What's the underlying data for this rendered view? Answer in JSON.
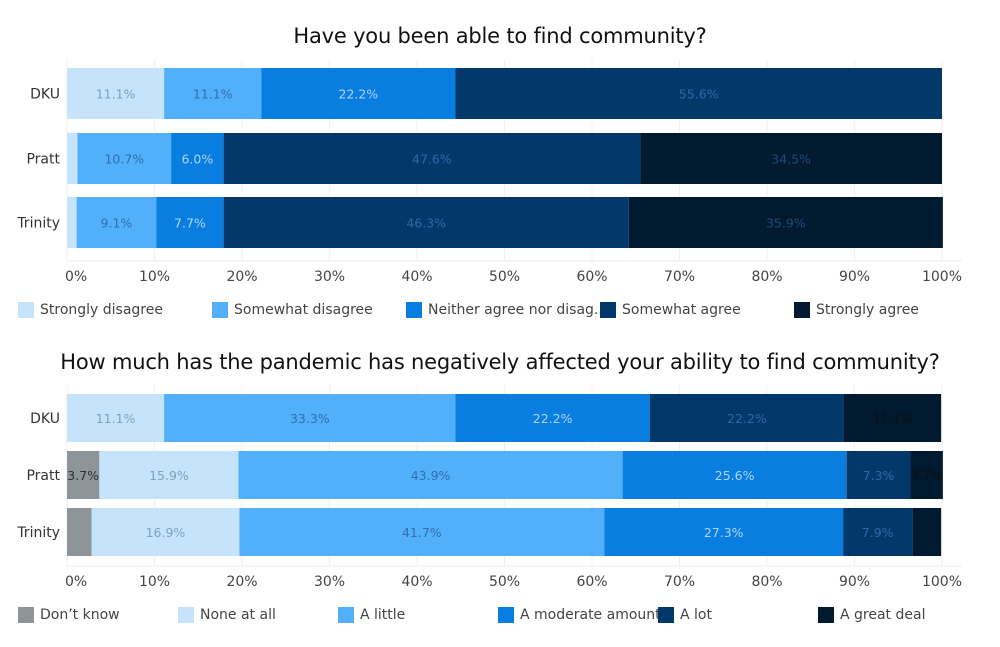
{
  "chart_data": [
    {
      "type": "bar",
      "orientation": "horizontal",
      "stacked": true,
      "title": "Have you been able to find community?",
      "xlabel": "",
      "ylabel": "",
      "xlim": [
        0,
        100
      ],
      "x_ticks": [
        "0%",
        "10%",
        "20%",
        "30%",
        "40%",
        "50%",
        "60%",
        "70%",
        "80%",
        "90%",
        "100%"
      ],
      "grid": true,
      "legend_position": "bottom",
      "categories": [
        "DKU",
        "Pratt",
        "Trinity"
      ],
      "series": [
        {
          "name": "Strongly disagree",
          "legend_label": "Strongly disagree",
          "color": "#c5e4fc",
          "label_color": "#7f9fbd",
          "values": [
            11.1,
            1.2,
            1.1
          ],
          "labels": [
            "11.1%",
            "",
            ""
          ]
        },
        {
          "name": "Somewhat disagree",
          "legend_label": "Somewhat disagree",
          "color": "#52b0fb",
          "label_color": "#2f6fae",
          "values": [
            11.1,
            10.7,
            9.1
          ],
          "labels": [
            "11.1%",
            "10.7%",
            "9.1%"
          ]
        },
        {
          "name": "Neither agree nor disagree",
          "legend_label": "Neither agree nor disag..",
          "color": "#0a7de0",
          "label_color": "#a9d6ff",
          "values": [
            22.2,
            6.0,
            7.7
          ],
          "labels": [
            "22.2%",
            "6.0%",
            "7.7%"
          ]
        },
        {
          "name": "Somewhat agree",
          "legend_label": "Somewhat agree",
          "color": "#03396a",
          "label_color": "#2a69a8",
          "values": [
            55.6,
            47.6,
            46.3
          ],
          "labels": [
            "55.6%",
            "47.6%",
            "46.3%"
          ]
        },
        {
          "name": "Strongly agree",
          "legend_label": "Strongly agree",
          "color": "#021a30",
          "label_color": "#1f4a78",
          "values": [
            0,
            34.5,
            35.9
          ],
          "labels": [
            "",
            "34.5%",
            "35.9%"
          ]
        }
      ]
    },
    {
      "type": "bar",
      "orientation": "horizontal",
      "stacked": true,
      "title": "How much has the pandemic has negatively affected your ability to find community?",
      "xlabel": "",
      "ylabel": "",
      "xlim": [
        0,
        100
      ],
      "x_ticks": [
        "0%",
        "10%",
        "20%",
        "30%",
        "40%",
        "50%",
        "60%",
        "70%",
        "80%",
        "90%",
        "100%"
      ],
      "grid": true,
      "legend_position": "bottom",
      "categories": [
        "DKU",
        "Pratt",
        "Trinity"
      ],
      "series": [
        {
          "name": "Don't know",
          "legend_label": "Don’t know",
          "color": "#8d9599",
          "label_color": "#2b2f33",
          "values": [
            0,
            3.7,
            2.8
          ],
          "labels": [
            "",
            "3.7%",
            ""
          ]
        },
        {
          "name": "None at all",
          "legend_label": "None at all",
          "color": "#c5e4fc",
          "label_color": "#7f9fbd",
          "values": [
            11.1,
            15.9,
            16.9
          ],
          "labels": [
            "11.1%",
            "15.9%",
            "16.9%"
          ]
        },
        {
          "name": "A little",
          "legend_label": "A little",
          "color": "#52b0fb",
          "label_color": "#2f6fae",
          "values": [
            33.3,
            43.9,
            41.7
          ],
          "labels": [
            "33.3%",
            "43.9%",
            "41.7%"
          ]
        },
        {
          "name": "A moderate amount",
          "legend_label": "A moderate amount",
          "color": "#0a7de0",
          "label_color": "#a9d6ff",
          "values": [
            22.2,
            25.6,
            27.3
          ],
          "labels": [
            "22.2%",
            "25.6%",
            "27.3%"
          ]
        },
        {
          "name": "A lot",
          "legend_label": "A lot",
          "color": "#03396a",
          "label_color": "#2a69a8",
          "values": [
            22.2,
            7.3,
            7.9
          ],
          "labels": [
            "22.2%",
            "7.3%",
            "7.9%"
          ]
        },
        {
          "name": "A great deal",
          "legend_label": "A great deal",
          "color": "#021a30",
          "label_color": "#0b0f14",
          "values": [
            11.1,
            3.7,
            3.3
          ],
          "labels": [
            "11.1%",
            "3.7%",
            ""
          ]
        }
      ]
    }
  ]
}
